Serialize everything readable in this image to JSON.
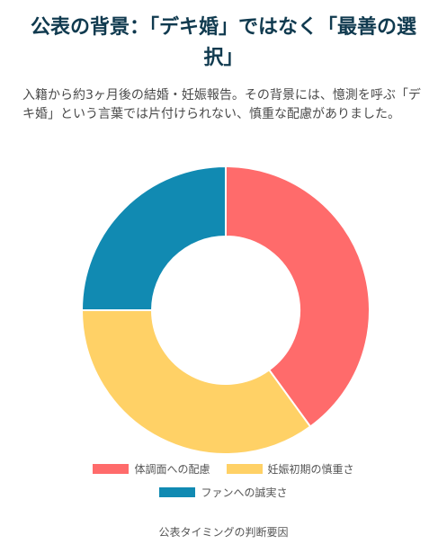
{
  "header": {
    "title": "公表の背景：「デキ婚」ではなく「最善の選択」",
    "description": "入籍から約3ヶ月後の結婚・妊娠報告。その背景には、憶測を呼ぶ「デキ婚」という言葉では片付けられない、慎重な配慮がありました。"
  },
  "chart_data": {
    "type": "doughnut",
    "title": "",
    "caption": "公表タイミングの判断要因",
    "legend_position": "bottom",
    "categories": [
      "体調面への配慮",
      "妊娠初期の慎重さ",
      "ファンへの誠実さ"
    ],
    "values": [
      40,
      35,
      25
    ],
    "colors": [
      "#ff6b6b",
      "#ffd166",
      "#118ab2"
    ]
  }
}
